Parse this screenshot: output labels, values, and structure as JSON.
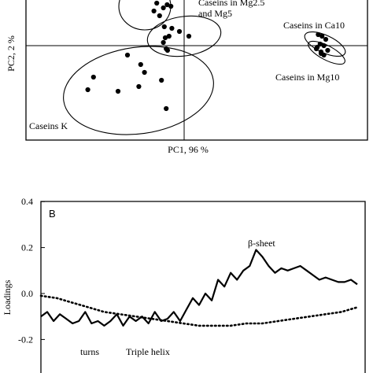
{
  "chart_data": [
    {
      "type": "scatter",
      "xlabel": "PC1, 96 %",
      "ylabel": "PC2, 2 %",
      "groups": [
        {
          "label": "Caseins in Mg2.5 and Mg5",
          "label_lines": [
            "Caseins in Mg2.5",
            "and Mg5"
          ],
          "points": [
            [
              -16,
              2.2
            ],
            [
              -14.5,
              2.7
            ],
            [
              -13,
              1.9
            ],
            [
              -11,
              2.4
            ],
            [
              -9,
              2.6
            ],
            [
              -7,
              2.5
            ],
            [
              -10.5,
              1.2
            ],
            [
              -6.5,
              1.1
            ],
            [
              -2.5,
              0.9
            ],
            [
              -10,
              0.5
            ],
            [
              -11,
              0.2
            ],
            [
              -8,
              0.6
            ],
            [
              -9.5,
              -0.2
            ],
            [
              -8.8,
              -0.3
            ],
            [
              2.5,
              0.6
            ]
          ]
        },
        {
          "label": "Caseins in Ca10",
          "points": [
            [
              71,
              0.7
            ],
            [
              73,
              0.6
            ],
            [
              75,
              0.4
            ],
            [
              72,
              0.1
            ],
            [
              74,
              0.0
            ],
            [
              76,
              -0.3
            ],
            [
              70,
              -0.2
            ],
            [
              72.5,
              -0.5
            ]
          ]
        },
        {
          "label": "Caseins in Mg10",
          "points": [
            [
              70.5,
              -0.1
            ],
            [
              72.5,
              -0.4
            ],
            [
              74,
              -0.6
            ]
          ]
        },
        {
          "label": "Caseins K",
          "points": [
            [
              -30,
              -0.6
            ],
            [
              -48,
              -2.0
            ],
            [
              -51,
              -2.8
            ],
            [
              -35,
              -2.9
            ],
            [
              -24,
              -2.6
            ],
            [
              -21,
              -1.7
            ],
            [
              -23,
              -1.2
            ],
            [
              -12,
              -2.2
            ],
            [
              -9.5,
              -4.0
            ]
          ]
        }
      ]
    },
    {
      "type": "line",
      "panel_label": "B",
      "ylabel": "Loadings",
      "y_ticks": [
        "0.4",
        "0.2",
        "0.0",
        "-0.2"
      ],
      "ylim": [
        -0.3,
        0.4
      ],
      "xlim": [
        0,
        100
      ],
      "annotations": [
        "β-sheet",
        "turns",
        "Triple helix"
      ],
      "series": [
        {
          "style": "solid",
          "x": [
            0,
            2,
            4,
            6,
            8,
            10,
            12,
            14,
            16,
            18,
            20,
            22,
            24,
            26,
            28,
            30,
            32,
            34,
            36,
            38,
            40,
            42,
            44,
            46,
            48,
            50,
            52,
            54,
            56,
            58,
            60,
            62,
            64,
            66,
            68,
            70,
            72,
            74,
            76,
            78,
            80,
            82,
            84,
            86,
            88,
            90,
            92,
            94,
            96,
            98,
            100
          ],
          "values": [
            -0.1,
            -0.08,
            -0.12,
            -0.09,
            -0.11,
            -0.13,
            -0.12,
            -0.08,
            -0.13,
            -0.12,
            -0.14,
            -0.12,
            -0.09,
            -0.14,
            -0.1,
            -0.12,
            -0.1,
            -0.13,
            -0.08,
            -0.12,
            -0.11,
            -0.08,
            -0.12,
            -0.07,
            -0.02,
            -0.05,
            0.0,
            -0.03,
            0.06,
            0.03,
            0.09,
            0.06,
            0.1,
            0.12,
            0.19,
            0.16,
            0.12,
            0.09,
            0.11,
            0.1,
            0.11,
            0.12,
            0.1,
            0.08,
            0.06,
            0.07,
            0.06,
            0.05,
            0.05,
            0.06,
            0.04
          ]
        },
        {
          "style": "dotted",
          "x": [
            0,
            5,
            10,
            15,
            20,
            25,
            30,
            35,
            40,
            45,
            50,
            55,
            60,
            65,
            70,
            75,
            80,
            85,
            90,
            95,
            100
          ],
          "values": [
            -0.01,
            -0.02,
            -0.04,
            -0.06,
            -0.08,
            -0.09,
            -0.1,
            -0.11,
            -0.12,
            -0.13,
            -0.14,
            -0.14,
            -0.14,
            -0.13,
            -0.13,
            -0.12,
            -0.11,
            -0.1,
            -0.09,
            -0.08,
            -0.06
          ]
        }
      ]
    }
  ]
}
